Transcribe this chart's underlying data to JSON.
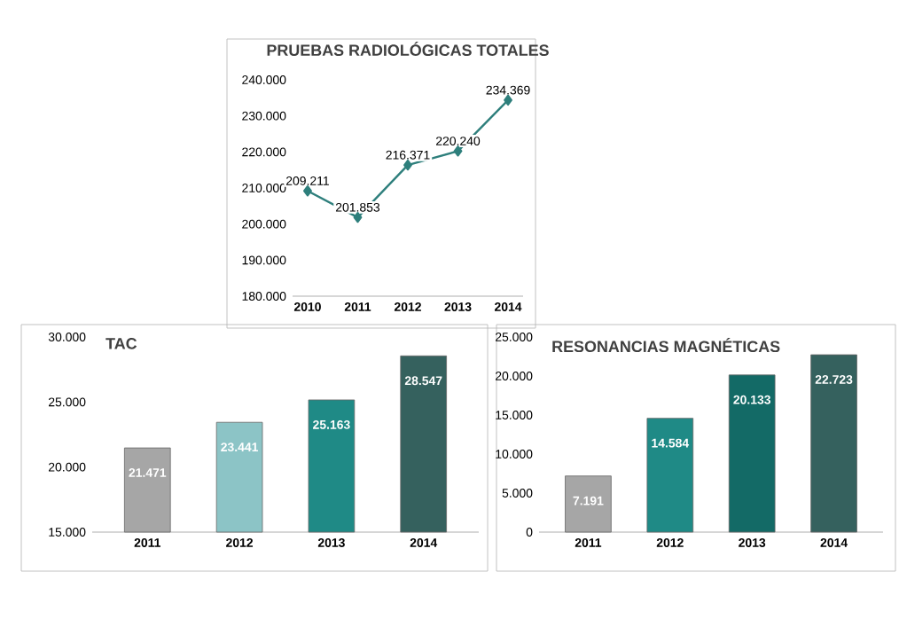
{
  "chart_data": [
    {
      "type": "line",
      "title": "PRUEBAS RADIOLÓGICAS TOTALES",
      "categories": [
        "2010",
        "2011",
        "2012",
        "2013",
        "2014"
      ],
      "series": [
        {
          "color": "#2e7f7c",
          "values": [
            209211,
            201853,
            216371,
            220240,
            234369
          ],
          "value_labels": [
            "209.211",
            "201.853",
            "216.371",
            "220.240",
            "234.369"
          ]
        }
      ],
      "ylim": [
        180000,
        240000
      ],
      "yticks": [
        {
          "value": 180000,
          "label": "180.000"
        },
        {
          "value": 190000,
          "label": "190.000"
        },
        {
          "value": 200000,
          "label": "200.000"
        },
        {
          "value": 210000,
          "label": "210.000"
        },
        {
          "value": 220000,
          "label": "220.000"
        },
        {
          "value": 230000,
          "label": "230.000"
        },
        {
          "value": 240000,
          "label": "240.000"
        }
      ],
      "marker": "diamond"
    },
    {
      "type": "bar",
      "title": "TAC",
      "categories": [
        "2011",
        "2012",
        "2013",
        "2014"
      ],
      "values": [
        21471,
        23441,
        25163,
        28547
      ],
      "value_labels": [
        "21.471",
        "23.441",
        "25.163",
        "28.547"
      ],
      "colors": [
        "#a6a6a6",
        "#8cc4c6",
        "#1f8a86",
        "#35615e"
      ],
      "ylim": [
        15000,
        30000
      ],
      "yticks": [
        {
          "value": 15000,
          "label": "15.000"
        },
        {
          "value": 20000,
          "label": "20.000"
        },
        {
          "value": 25000,
          "label": "25.000"
        },
        {
          "value": 30000,
          "label": "30.000"
        }
      ]
    },
    {
      "type": "bar",
      "title": "RESONANCIAS MAGNÉTICAS",
      "categories": [
        "2011",
        "2012",
        "2013",
        "2014"
      ],
      "values": [
        7191,
        14584,
        20133,
        22723
      ],
      "value_labels": [
        "7.191",
        "14.584",
        "20.133",
        "22.723"
      ],
      "colors": [
        "#a6a6a6",
        "#1f8a86",
        "#136a66",
        "#35615e"
      ],
      "ylim": [
        0,
        25000
      ],
      "yticks": [
        0,
        {
          "value": 5000,
          "label": "5.000"
        },
        {
          "value": 10000,
          "label": "10.000"
        },
        {
          "value": 15000,
          "label": "15.000"
        },
        {
          "value": 20000,
          "label": "20.000"
        },
        {
          "value": 25000,
          "label": "25.000"
        }
      ]
    }
  ]
}
